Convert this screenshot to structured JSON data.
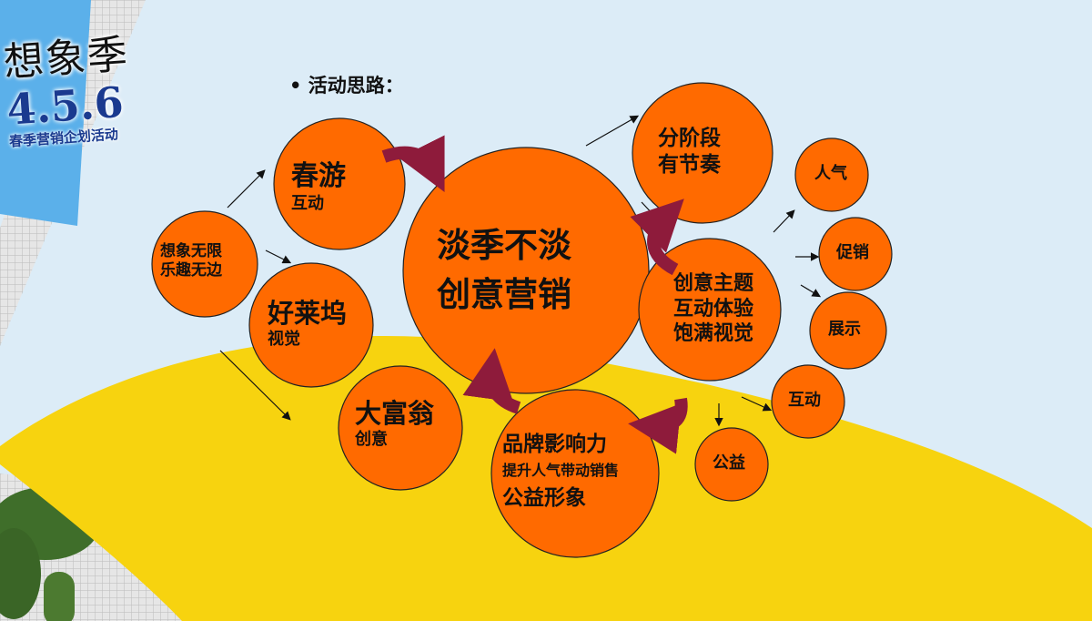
{
  "logo": {
    "title": "想象季",
    "number": "4.5.6",
    "subtitle": "春季营销企划活动"
  },
  "heading": "• 活动思路：",
  "colors": {
    "background": "#dcecf7",
    "circle": "#ff6a00",
    "yellow": "#f7d30f",
    "curved_arrow": "#8e1b3b",
    "panel": "#5bb0ea"
  },
  "nodes": {
    "origin": {
      "line1": "想象无限",
      "line2": "乐趣无边"
    },
    "spring": {
      "line1": "春游",
      "line2": "互动"
    },
    "hollywood": {
      "line1": "好莱坞",
      "line2": "视觉"
    },
    "monopoly": {
      "line1": "大富翁",
      "line2": "创意"
    },
    "center": {
      "line1": "淡季不淡",
      "line2": "创意营销"
    },
    "phase": {
      "line1": "分阶段",
      "line2": "有节奏"
    },
    "theme": {
      "line1": "创意主题",
      "line2": "互动体验",
      "line3": "饱满视觉"
    },
    "brand": {
      "line1": "品牌影响力",
      "line2": "提升人气带动销售",
      "line3": "公益形象"
    },
    "popularity": {
      "line1": "人气"
    },
    "promotion": {
      "line1": "促销"
    },
    "display": {
      "line1": "展示"
    },
    "interaction": {
      "line1": "互动"
    },
    "charity": {
      "line1": "公益"
    }
  }
}
